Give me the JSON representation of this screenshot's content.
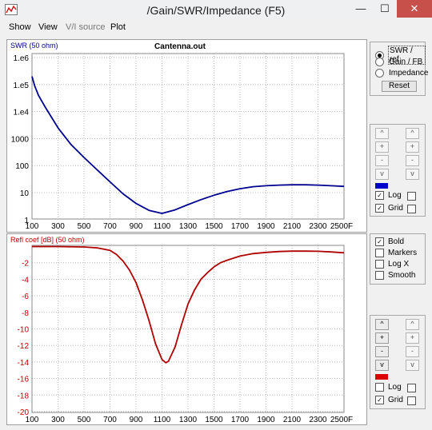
{
  "window": {
    "title": "/Gain/SWR/Impedance (F5)",
    "minimize": "—",
    "maximize": "☐",
    "close": "✕"
  },
  "menu": [
    {
      "label": "Show",
      "enabled": true
    },
    {
      "label": "View",
      "enabled": true
    },
    {
      "label": "V/I source",
      "enabled": false
    },
    {
      "label": "Plot",
      "enabled": true
    }
  ],
  "top_chart": {
    "file_label": "Cantenna.out",
    "ylabel": "SWR (50 ohm)",
    "y_ticks": [
      "1.e6",
      "1.e5",
      "1.e4",
      "1000",
      "100",
      "10",
      "1"
    ],
    "x_ticks": [
      "100",
      "300",
      "500",
      "700",
      "900",
      "1100",
      "1300",
      "1500",
      "1700",
      "1900",
      "2100",
      "2300",
      "2500F"
    ],
    "line_color": "#000090"
  },
  "bottom_chart": {
    "ylabel": "Refl coef [dB] (50 ohm)",
    "y_ticks": [
      "-2",
      "-4",
      "-6",
      "-8",
      "-10",
      "-12",
      "-14",
      "-16",
      "-18",
      "-20"
    ],
    "x_ticks": [
      "100",
      "300",
      "500",
      "700",
      "900",
      "1100",
      "1300",
      "1500",
      "1700",
      "1900",
      "2100",
      "2300",
      "2500F"
    ],
    "label_color": "#c00000",
    "line_color": "#b00000"
  },
  "chart_data": [
    {
      "type": "line",
      "title": "Cantenna.out",
      "ylabel": "SWR (50 ohm)",
      "y_scale": "log",
      "xlim": [
        100,
        2500
      ],
      "ylim": [
        1,
        1000000
      ],
      "grid": true,
      "x": [
        100,
        120,
        150,
        200,
        300,
        400,
        500,
        600,
        700,
        800,
        900,
        1000,
        1100,
        1200,
        1300,
        1400,
        1500,
        1600,
        1700,
        1800,
        1900,
        2000,
        2100,
        2200,
        2300,
        2400,
        2500
      ],
      "series": [
        {
          "values": [
            200000,
            90000,
            40000,
            15000,
            2500,
            600,
            200,
            70,
            25,
            9,
            4,
            2.2,
            1.7,
            2.3,
            3.6,
            5.5,
            8,
            11,
            14,
            16.5,
            18,
            19,
            19.5,
            19.5,
            19,
            18,
            17
          ]
        }
      ]
    },
    {
      "type": "line",
      "ylabel": "Refl coef [dB] (50 ohm)",
      "xlim": [
        100,
        2500
      ],
      "ylim": [
        -20,
        0
      ],
      "grid": true,
      "x": [
        100,
        300,
        500,
        600,
        700,
        750,
        800,
        850,
        900,
        950,
        1000,
        1050,
        1100,
        1130,
        1150,
        1200,
        1250,
        1300,
        1350,
        1400,
        1450,
        1500,
        1550,
        1600,
        1700,
        1800,
        1900,
        2000,
        2100,
        2200,
        2300,
        2400,
        2500
      ],
      "series": [
        {
          "values": [
            -0.05,
            -0.05,
            -0.1,
            -0.2,
            -0.5,
            -1.0,
            -1.8,
            -2.9,
            -4.4,
            -6.5,
            -9.0,
            -11.8,
            -13.7,
            -14.1,
            -13.9,
            -12.2,
            -9.5,
            -7.0,
            -5.3,
            -4.0,
            -3.2,
            -2.5,
            -2.0,
            -1.7,
            -1.2,
            -0.9,
            -0.75,
            -0.65,
            -0.6,
            -0.6,
            -0.62,
            -0.7,
            -0.8
          ]
        }
      ]
    }
  ],
  "top_panel": {
    "radios": [
      {
        "label": "SWR / ref",
        "selected": true
      },
      {
        "label": "Gain / FB",
        "selected": false
      },
      {
        "label": "Impedance",
        "selected": false
      }
    ],
    "reset_label": "Reset"
  },
  "scale_controls_top": {
    "buttons_left": [
      "^",
      "+",
      "-",
      "v"
    ],
    "buttons_right": [
      "^",
      "+",
      "-",
      "v"
    ],
    "swatch_color": "#0000cc",
    "log_label": "Log",
    "log_checked": true,
    "grid_label": "Grid",
    "grid_checked": true,
    "check_mark": "✓"
  },
  "options_panel": {
    "items": [
      {
        "label": "Bold",
        "checked": true
      },
      {
        "label": "Markers",
        "checked": false
      },
      {
        "label": "Log X",
        "checked": false
      },
      {
        "label": "Smooth",
        "checked": false
      }
    ]
  },
  "scale_controls_bottom": {
    "buttons_left": [
      "^",
      "+",
      "-",
      "v"
    ],
    "buttons_right": [
      "^",
      "+",
      "-",
      "v"
    ],
    "swatch_color": "#dd0000",
    "log_label": "Log",
    "log_checked": false,
    "grid_label": "Grid",
    "grid_checked": true
  }
}
